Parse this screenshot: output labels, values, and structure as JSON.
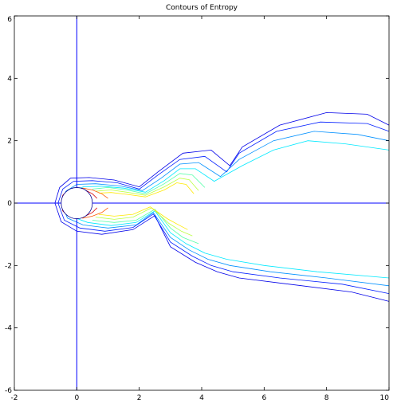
{
  "chart_data": {
    "type": "contour",
    "title": "Contours of Entropy",
    "xlabel": "",
    "ylabel": "",
    "xlim": [
      -2,
      10
    ],
    "ylim": [
      -6,
      6
    ],
    "x_ticks": [
      -2,
      0,
      2,
      4,
      6,
      8,
      10
    ],
    "y_ticks": [
      -6,
      -4,
      -2,
      0,
      2,
      4,
      6
    ],
    "x_tick_labels": [
      "-2",
      "0",
      "2",
      "4",
      "6",
      "8",
      "10"
    ],
    "y_tick_labels": [
      "-6",
      "-4",
      "-2",
      "0",
      "2",
      "4",
      "6"
    ],
    "grid": false,
    "reference_lines": {
      "x": 0,
      "y": 0,
      "color": "#0000ff"
    },
    "cylinder": {
      "center": [
        0,
        0
      ],
      "radius": 0.5
    },
    "colormap": [
      "#000090",
      "#0000ff",
      "#0090ff",
      "#00ffff",
      "#90ff70",
      "#ffff00",
      "#ff9000",
      "#ff0000",
      "#900000"
    ],
    "contour_levels": [
      {
        "x": [
          -0.7,
          -0.55,
          -0.2,
          0.4,
          1.2,
          2.0,
          2.6,
          3.4,
          4.3,
          4.9,
          5.3,
          6.5,
          8,
          9.3,
          10
        ],
        "y": [
          0.0,
          0.5,
          0.8,
          0.82,
          0.74,
          0.52,
          1.0,
          1.6,
          1.7,
          1.2,
          1.8,
          2.5,
          2.9,
          2.85,
          2.5
        ],
        "c": 0.1
      },
      {
        "x": [
          -0.7,
          -0.5,
          0.0,
          0.8,
          1.8,
          2.5,
          3.0,
          3.8,
          4.5,
          5.2,
          6.8,
          8.8,
          10
        ],
        "y": [
          0.0,
          -0.6,
          -0.9,
          -1.0,
          -0.85,
          -0.4,
          -1.4,
          -1.9,
          -2.2,
          -2.4,
          -2.6,
          -2.85,
          -3.15
        ],
        "c": 0.1
      },
      {
        "x": [
          -0.6,
          -0.45,
          -0.1,
          0.5,
          1.3,
          2.0,
          2.6,
          3.3,
          4.1,
          4.8,
          5.2,
          6.4,
          7.8,
          9.3,
          10
        ],
        "y": [
          0.0,
          0.45,
          0.7,
          0.72,
          0.65,
          0.45,
          0.9,
          1.4,
          1.5,
          1.0,
          1.6,
          2.3,
          2.6,
          2.55,
          2.3
        ],
        "c": 0.15
      },
      {
        "x": [
          -0.6,
          -0.4,
          0.1,
          0.9,
          1.8,
          2.45,
          3.0,
          3.7,
          4.3,
          5.0,
          6.5,
          8.5,
          10
        ],
        "y": [
          0.0,
          -0.55,
          -0.8,
          -0.9,
          -0.78,
          -0.35,
          -1.25,
          -1.7,
          -2.0,
          -2.2,
          -2.4,
          -2.6,
          -2.9
        ],
        "c": 0.15
      },
      {
        "x": [
          -0.5,
          -0.35,
          0.0,
          0.6,
          1.4,
          2.1,
          2.7,
          3.3,
          3.9,
          4.6,
          5.2,
          6.3,
          7.6,
          9.0,
          10
        ],
        "y": [
          0.0,
          0.38,
          0.6,
          0.62,
          0.55,
          0.4,
          0.8,
          1.25,
          1.3,
          0.85,
          1.4,
          2.0,
          2.3,
          2.2,
          2.0
        ],
        "c": 0.25
      },
      {
        "x": [
          -0.5,
          -0.3,
          0.2,
          1.0,
          1.9,
          2.45,
          3.0,
          3.6,
          4.2,
          4.9,
          6.2,
          8.0,
          10
        ],
        "y": [
          0.0,
          -0.48,
          -0.7,
          -0.8,
          -0.7,
          -0.3,
          -1.1,
          -1.5,
          -1.8,
          -2.0,
          -2.2,
          -2.4,
          -2.65
        ],
        "c": 0.25
      },
      {
        "x": [
          -0.4,
          -0.25,
          0.2,
          0.8,
          1.5,
          2.2,
          2.8,
          3.3,
          3.8,
          4.4,
          5.3,
          6.3,
          7.4,
          8.6,
          10
        ],
        "y": [
          0.0,
          0.32,
          0.52,
          0.54,
          0.48,
          0.35,
          0.72,
          1.1,
          1.1,
          0.7,
          1.2,
          1.7,
          2.0,
          1.9,
          1.7
        ],
        "c": 0.35
      },
      {
        "x": [
          -0.4,
          -0.2,
          0.35,
          1.1,
          1.9,
          2.5,
          3.0,
          3.5,
          4.1,
          4.8,
          6.0,
          7.7,
          10
        ],
        "y": [
          0.0,
          -0.42,
          -0.62,
          -0.72,
          -0.62,
          -0.25,
          -0.95,
          -1.3,
          -1.6,
          -1.8,
          -2.0,
          -2.2,
          -2.4
        ],
        "c": 0.35
      },
      {
        "x": [
          0.5,
          1.0,
          1.6,
          2.2,
          2.8,
          3.3,
          3.7,
          4.1
        ],
        "y": [
          0.45,
          0.5,
          0.42,
          0.3,
          0.62,
          0.95,
          0.9,
          0.5
        ],
        "c": 0.45
      },
      {
        "x": [
          0.5,
          1.2,
          1.9,
          2.5,
          3.0,
          3.4,
          3.9
        ],
        "y": [
          -0.55,
          -0.62,
          -0.55,
          -0.2,
          -0.8,
          -1.1,
          -1.3
        ],
        "c": 0.45
      },
      {
        "x": [
          0.6,
          1.1,
          1.6,
          2.2,
          2.8,
          3.3,
          3.6,
          3.9
        ],
        "y": [
          0.38,
          0.42,
          0.35,
          0.25,
          0.52,
          0.8,
          0.75,
          0.4
        ],
        "c": 0.55
      },
      {
        "x": [
          0.6,
          1.2,
          1.8,
          2.4,
          2.95,
          3.35,
          3.7
        ],
        "y": [
          -0.45,
          -0.52,
          -0.45,
          -0.15,
          -0.65,
          -0.9,
          -1.05
        ],
        "c": 0.55
      },
      {
        "x": [
          0.7,
          1.1,
          1.6,
          2.2,
          2.8,
          3.2,
          3.5,
          3.75
        ],
        "y": [
          0.32,
          0.34,
          0.28,
          0.2,
          0.42,
          0.65,
          0.6,
          0.3
        ],
        "c": 0.65
      },
      {
        "x": [
          0.7,
          1.2,
          1.8,
          2.35,
          2.9,
          3.3,
          3.55
        ],
        "y": [
          -0.36,
          -0.42,
          -0.36,
          -0.12,
          -0.5,
          -0.72,
          -0.85
        ],
        "c": 0.65
      },
      {
        "x": [
          -0.45,
          -0.35,
          -0.1,
          0.2,
          0.5,
          0.8,
          1.0
        ],
        "y": [
          0.0,
          0.3,
          0.45,
          0.48,
          0.42,
          0.3,
          0.15
        ],
        "c": 0.8
      },
      {
        "x": [
          -0.45,
          -0.35,
          -0.1,
          0.2,
          0.5,
          0.8,
          1.0
        ],
        "y": [
          0.0,
          -0.3,
          -0.45,
          -0.48,
          -0.42,
          -0.3,
          -0.15
        ],
        "c": 0.8
      },
      {
        "x": [
          -0.5,
          -0.45,
          -0.3,
          -0.1,
          0.1,
          0.3,
          0.5,
          0.65
        ],
        "y": [
          0.0,
          0.25,
          0.4,
          0.46,
          0.46,
          0.4,
          0.3,
          0.15
        ],
        "c": 0.92
      },
      {
        "x": [
          -0.5,
          -0.45,
          -0.3,
          -0.1,
          0.1,
          0.3,
          0.5,
          0.65
        ],
        "y": [
          0.0,
          -0.25,
          -0.4,
          -0.46,
          -0.46,
          -0.4,
          -0.3,
          -0.15
        ],
        "c": 0.92
      }
    ]
  }
}
